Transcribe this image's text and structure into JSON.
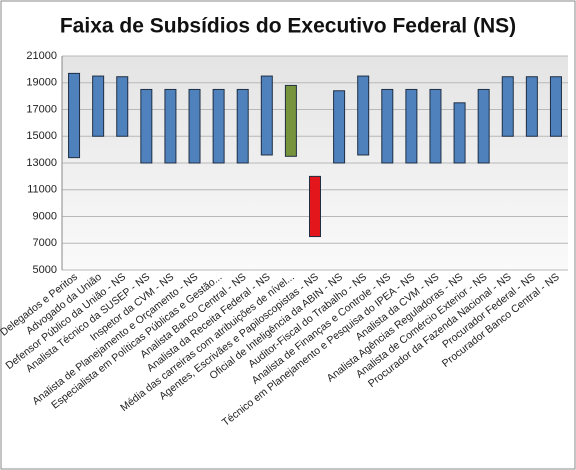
{
  "chart_data": {
    "type": "floating-bar",
    "title": "Faixa de Subsídios do Executivo Federal (NS)",
    "categories": [
      "Delegados e Peritos",
      "Advogado da União",
      "Defensor Público da União - NS",
      "Analista Técnico da SUSEP - NS",
      "Inspetor da CVM - NS",
      "Analista de Planejamento e Orçamento - NS",
      "Especialista em Políticas Públicas e Gestão...",
      "Analista Banco Central - NS",
      "Analista da Receita Federal - NS",
      "Média das carreiras com atribuições de nível...",
      "Agentes, Escrivães e Papiloscopistas - NS",
      "Oficial de Inteligência da ABIN - NS",
      "Auditor-Fiscal do Trabalho - NS",
      "Analista de Finanças e Controle - NS",
      "Técnico em Planejamento e Pesquisa do IPEA - NS",
      "Analista da CVM - NS",
      "Analista Agências Reguladoras - NS",
      "Analista de Comércio Exterior - NS",
      "Procurador da Fazenda Nacional - NS",
      "Procurador Federal - NS",
      "Procurador Banco Central - NS"
    ],
    "low": [
      13400,
      15000,
      15000,
      13000,
      13000,
      13000,
      13000,
      13000,
      13600,
      13500,
      7500,
      13000,
      13600,
      13000,
      13000,
      13000,
      13000,
      13000,
      15000,
      15000,
      15000
    ],
    "high": [
      19700,
      19500,
      19450,
      18500,
      18500,
      18500,
      18500,
      18500,
      19500,
      18800,
      12000,
      18400,
      19500,
      18500,
      18500,
      18500,
      17500,
      18500,
      19450,
      19450,
      19450
    ],
    "colors": [
      "#4f81bd",
      "#4f81bd",
      "#4f81bd",
      "#4f81bd",
      "#4f81bd",
      "#4f81bd",
      "#4f81bd",
      "#4f81bd",
      "#4f81bd",
      "#77933c",
      "#e3161b",
      "#4f81bd",
      "#4f81bd",
      "#4f81bd",
      "#4f81bd",
      "#4f81bd",
      "#4f81bd",
      "#4f81bd",
      "#4f81bd",
      "#4f81bd",
      "#4f81bd"
    ],
    "ylim": [
      5000,
      21000
    ],
    "yticks": [
      5000,
      7000,
      9000,
      11000,
      13000,
      15000,
      17000,
      19000,
      21000
    ],
    "grid": true
  }
}
